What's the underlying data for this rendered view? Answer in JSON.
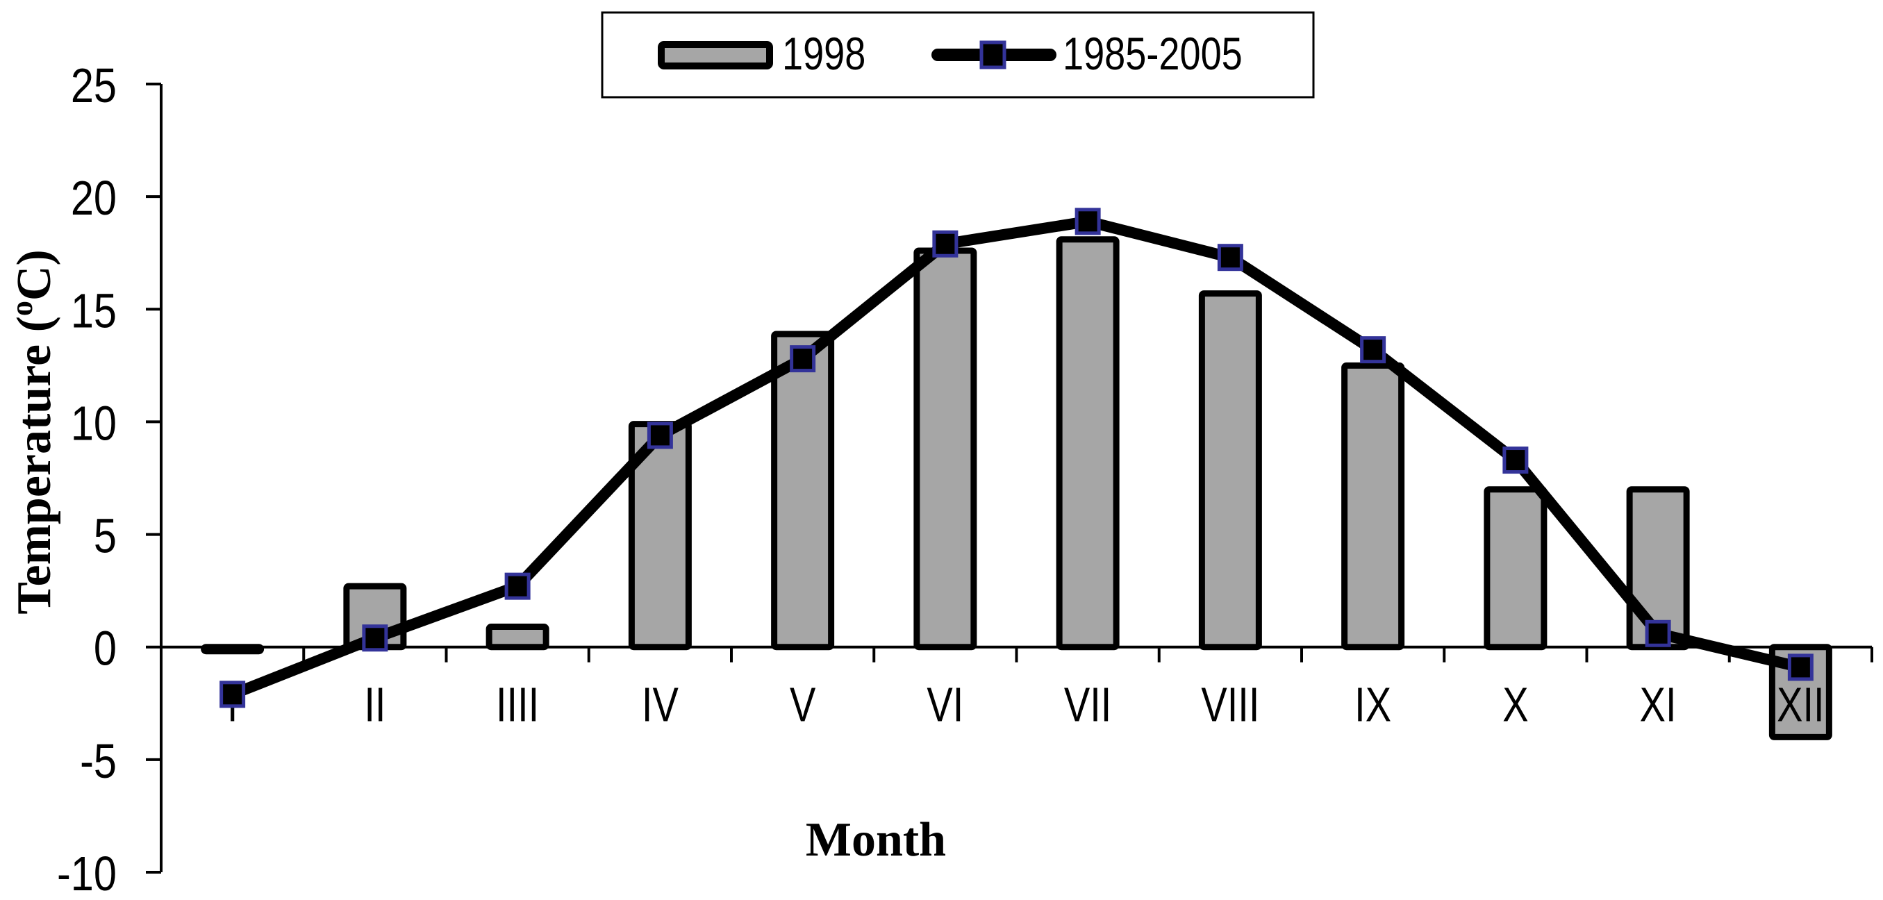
{
  "chart_data": {
    "type": "bar+line",
    "title": "",
    "xlabel": "Month",
    "ylabel": "Temperature (oC)",
    "ylabel_parts": {
      "main": "Temperature (",
      "sup": "o",
      "end": "C)"
    },
    "ylim": [
      -10,
      25
    ],
    "yticks": [
      25,
      20,
      15,
      10,
      5,
      0,
      -5,
      -10
    ],
    "grid": false,
    "legend_position": "top-center",
    "categories": [
      "I",
      "II",
      "IIII",
      "IV",
      "V",
      "VI",
      "VII",
      "VIII",
      "IX",
      "X",
      "XI",
      "XII"
    ],
    "series": [
      {
        "name": "1998",
        "type": "bar",
        "color": "#A6A6A6",
        "edge_color": "#000000",
        "values": [
          -0.1,
          2.7,
          0.9,
          9.9,
          13.9,
          17.6,
          18.1,
          15.7,
          12.5,
          7.0,
          7.0,
          -4.0
        ]
      },
      {
        "name": "1985-2005",
        "type": "line",
        "color": "#000000",
        "marker": "square",
        "marker_edge_color": "#333399",
        "values": [
          -2.1,
          0.4,
          2.7,
          9.4,
          12.8,
          17.9,
          18.9,
          17.3,
          13.2,
          8.3,
          0.6,
          -0.9
        ]
      }
    ]
  },
  "legend": {
    "items": [
      {
        "label": "1998",
        "icon": "gray-bar-swatch"
      },
      {
        "label": "1985-2005",
        "icon": "line-square-marker-swatch"
      }
    ]
  }
}
